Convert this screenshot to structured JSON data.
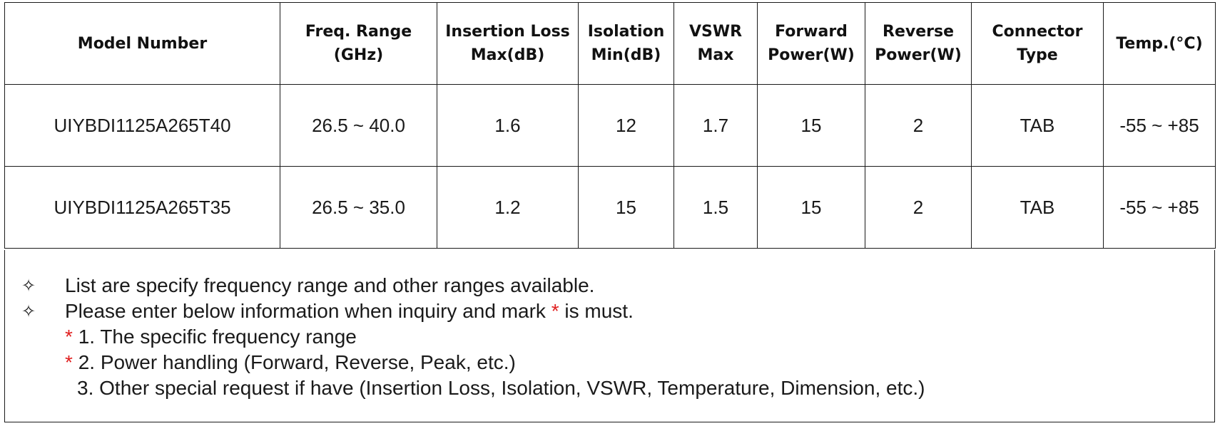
{
  "table": {
    "headers": [
      [
        "Model Number"
      ],
      [
        "Freq. Range",
        "(GHz)"
      ],
      [
        "Insertion Loss",
        "Max(dB)"
      ],
      [
        "Isolation",
        "Min(dB)"
      ],
      [
        "VSWR",
        "Max"
      ],
      [
        "Forward",
        "Power(W)"
      ],
      [
        "Reverse",
        "Power(W)"
      ],
      [
        "Connector",
        "Type"
      ],
      [
        "Temp.(°C)"
      ]
    ],
    "rows": [
      [
        "UIYBDI1125A265T40",
        "26.5 ~ 40.0",
        "1.6",
        "12",
        "1.7",
        "15",
        "2",
        "TAB",
        "-55 ~ +85"
      ],
      [
        "UIYBDI1125A265T35",
        "26.5 ~ 35.0",
        "1.2",
        "15",
        "1.5",
        "15",
        "2",
        "TAB",
        "-55 ~ +85"
      ]
    ]
  },
  "notes": {
    "bullet_glyph": "✧",
    "line1": "List are specify frequency range and other ranges available.",
    "line2_before": "Please enter below information when inquiry and mark ",
    "mark": "*",
    "line2_after": " is must.",
    "sub1": "1. The specific frequency range",
    "sub2": "2. Power handling (Forward, Reverse, Peak, etc.)",
    "sub3": "3. Other special request if have (Insertion Loss, Isolation, VSWR, Temperature, Dimension, etc.)"
  },
  "colors": {
    "border": "#1a1a1a",
    "required_mark": "#e02020"
  }
}
